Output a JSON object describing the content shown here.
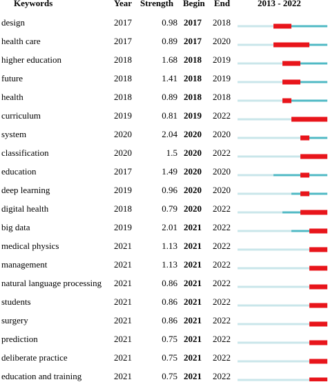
{
  "chart_data": {
    "type": "table",
    "headers": {
      "keywords": "Keywords",
      "year": "Year",
      "strength": "Strength",
      "begin": "Begin",
      "end": "End",
      "range": "2013 - 2022"
    },
    "range": [
      2013,
      2022
    ],
    "colors": {
      "baseline": "#c9e6ea",
      "span": "#4fb9c4",
      "burst": "#e8151b"
    },
    "rows": [
      {
        "keyword": "design",
        "year": "2017",
        "strength": "0.98",
        "begin": "2017",
        "end": "2018"
      },
      {
        "keyword": "health care",
        "year": "2017",
        "strength": "0.89",
        "begin": "2017",
        "end": "2020"
      },
      {
        "keyword": "higher education",
        "year": "2018",
        "strength": "1.68",
        "begin": "2018",
        "end": "2019"
      },
      {
        "keyword": "future",
        "year": "2018",
        "strength": "1.41",
        "begin": "2018",
        "end": "2019"
      },
      {
        "keyword": "health",
        "year": "2018",
        "strength": "0.89",
        "begin": "2018",
        "end": "2018"
      },
      {
        "keyword": "curriculum",
        "year": "2019",
        "strength": "0.81",
        "begin": "2019",
        "end": "2022"
      },
      {
        "keyword": "system",
        "year": "2020",
        "strength": "2.04",
        "begin": "2020",
        "end": "2020"
      },
      {
        "keyword": "classification",
        "year": "2020",
        "strength": "1.5",
        "begin": "2020",
        "end": "2022"
      },
      {
        "keyword": "education",
        "year": "2017",
        "strength": "1.49",
        "begin": "2020",
        "end": "2020"
      },
      {
        "keyword": "deep learning",
        "year": "2019",
        "strength": "0.96",
        "begin": "2020",
        "end": "2020"
      },
      {
        "keyword": "digital health",
        "year": "2018",
        "strength": "0.79",
        "begin": "2020",
        "end": "2022"
      },
      {
        "keyword": "big data",
        "year": "2019",
        "strength": "2.01",
        "begin": "2021",
        "end": "2022"
      },
      {
        "keyword": "medical physics",
        "year": "2021",
        "strength": "1.13",
        "begin": "2021",
        "end": "2022"
      },
      {
        "keyword": "management",
        "year": "2021",
        "strength": "1.13",
        "begin": "2021",
        "end": "2022"
      },
      {
        "keyword": "natural language processing",
        "year": "2021",
        "strength": "0.86",
        "begin": "2021",
        "end": "2022"
      },
      {
        "keyword": "students",
        "year": "2021",
        "strength": "0.86",
        "begin": "2021",
        "end": "2022"
      },
      {
        "keyword": "surgery",
        "year": "2021",
        "strength": "0.86",
        "begin": "2021",
        "end": "2022"
      },
      {
        "keyword": "prediction",
        "year": "2021",
        "strength": "0.75",
        "begin": "2021",
        "end": "2022"
      },
      {
        "keyword": "deliberate practice",
        "year": "2021",
        "strength": "0.75",
        "begin": "2021",
        "end": "2022"
      },
      {
        "keyword": "education and training",
        "year": "2021",
        "strength": "0.75",
        "begin": "2021",
        "end": "2022"
      }
    ]
  }
}
